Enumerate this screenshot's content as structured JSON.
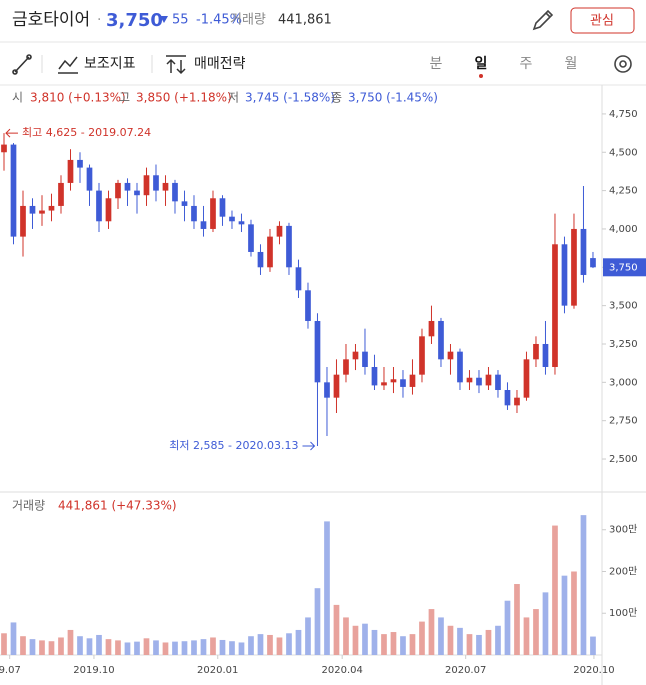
{
  "header": {
    "name": "금호타이어",
    "price": "3,750",
    "change": "55",
    "change_pct": "-1.45%",
    "volume_label": "거래량",
    "volume": "441,861",
    "button": "관심"
  },
  "toolbar": {
    "indicators": "보조지표",
    "strategy": "매매전략",
    "periods": [
      "분",
      "일",
      "주",
      "월"
    ]
  },
  "info": {
    "labels": [
      "시",
      "고",
      "저",
      "종"
    ],
    "values": [
      "3,810 (+0.13%)",
      "3,850 (+1.18%)",
      "3,745 (-1.58%)",
      "3,750 (-1.45%)"
    ]
  },
  "chart_data": {
    "type": "candlestick",
    "up_color": "#d0332a",
    "down_color": "#3e5bd6",
    "xlim": [
      -0.42,
      62.95
    ],
    "xticks": [
      {
        "value": 0.6,
        "label": "9.07"
      },
      {
        "value": 9.47,
        "label": "2019.10"
      },
      {
        "value": 22.5,
        "label": "2020.01"
      },
      {
        "value": 35.6,
        "label": "2020.04"
      },
      {
        "value": 48.6,
        "label": "2020.07"
      },
      {
        "value": 62.1,
        "label": "2020.10"
      }
    ],
    "ylim": [
      2285,
      4932
    ],
    "yticks": [
      {
        "value": 2500,
        "label": "2,500"
      },
      {
        "value": 2750,
        "label": "2,750"
      },
      {
        "value": 3000,
        "label": "3,000"
      },
      {
        "value": 3250,
        "label": "3,250"
      },
      {
        "value": 3500,
        "label": "3,500"
      },
      {
        "value": 3750,
        "label": "3,750"
      },
      {
        "value": 4000,
        "label": "4,000"
      },
      {
        "value": 4250,
        "label": "4,250"
      },
      {
        "value": 4500,
        "label": "4,500"
      },
      {
        "value": 4750,
        "label": "4,750"
      }
    ],
    "current_price": {
      "value": 3750,
      "label": "3,750"
    },
    "annotations": [
      {
        "text": "최고 4,625 - 2019.07.24",
        "index": 0,
        "value": 4625
      },
      {
        "text": "최저 2,585 - 2020.03.13",
        "index": 33,
        "value": 2585
      }
    ],
    "open": [
      4500,
      4550,
      3950,
      4150,
      4100,
      4120,
      4150,
      4300,
      4450,
      4400,
      4250,
      4050,
      4200,
      4300,
      4250,
      4220,
      4350,
      4250,
      4300,
      4180,
      4150,
      4050,
      4000,
      4200,
      4080,
      4050,
      4030,
      3850,
      3750,
      3950,
      4020,
      3750,
      3600,
      3400,
      3000,
      2900,
      3050,
      3150,
      3200,
      3100,
      2980,
      3000,
      3020,
      2970,
      3050,
      3300,
      3400,
      3150,
      3200,
      3000,
      3030,
      2980,
      3050,
      2950,
      2850,
      2900,
      3150,
      3250,
      3100,
      3900,
      3500,
      4000,
      3810
    ],
    "high": [
      4625,
      4560,
      4250,
      4200,
      4220,
      4230,
      4350,
      4520,
      4500,
      4420,
      4300,
      4250,
      4320,
      4330,
      4300,
      4400,
      4420,
      4350,
      4320,
      4250,
      4220,
      4150,
      4250,
      4220,
      4120,
      4100,
      4060,
      3900,
      4000,
      4050,
      4040,
      3800,
      3650,
      3450,
      3100,
      3150,
      3250,
      3250,
      3350,
      3180,
      3100,
      3100,
      3080,
      3150,
      3350,
      3500,
      3420,
      3250,
      3220,
      3080,
      3080,
      3100,
      3080,
      3000,
      2950,
      3200,
      3300,
      3400,
      4100,
      3950,
      4100,
      4280,
      3850
    ],
    "low": [
      4380,
      3900,
      3820,
      4000,
      4020,
      4050,
      4100,
      4250,
      4300,
      4150,
      3980,
      4000,
      4130,
      4150,
      4100,
      4150,
      4180,
      4150,
      4100,
      4050,
      4000,
      3950,
      3980,
      4020,
      4000,
      3980,
      3820,
      3700,
      3720,
      3900,
      3700,
      3550,
      3350,
      2585,
      2650,
      2800,
      3000,
      3080,
      3050,
      2950,
      2950,
      2930,
      2900,
      2920,
      3000,
      3250,
      3100,
      3050,
      2950,
      2950,
      2930,
      2950,
      2900,
      2820,
      2800,
      2880,
      3100,
      3050,
      3050,
      3450,
      3480,
      3650,
      3745
    ],
    "close": [
      4550,
      3950,
      4150,
      4100,
      4120,
      4150,
      4300,
      4450,
      4400,
      4250,
      4050,
      4200,
      4300,
      4250,
      4220,
      4350,
      4250,
      4300,
      4180,
      4150,
      4050,
      4000,
      4200,
      4080,
      4050,
      4030,
      3850,
      3750,
      3950,
      4020,
      3750,
      3600,
      3400,
      3000,
      2900,
      3050,
      3150,
      3200,
      3100,
      2980,
      3000,
      3020,
      2970,
      3050,
      3300,
      3400,
      3150,
      3200,
      3000,
      3030,
      2980,
      3050,
      2950,
      2850,
      2900,
      3150,
      3250,
      3100,
      3900,
      3500,
      4000,
      3700,
      3750
    ],
    "volume": {
      "label": "거래량",
      "summary": "441,861 (+47.33%)",
      "up_color": "#e8a29c",
      "down_color": "#9fb1ea",
      "ylim": [
        0,
        3880000
      ],
      "yticks": [
        {
          "value": 1000000,
          "label": "100만"
        },
        {
          "value": 2000000,
          "label": "200만"
        },
        {
          "value": 3000000,
          "label": "300만"
        }
      ],
      "values": [
        520000,
        780000,
        450000,
        380000,
        350000,
        330000,
        420000,
        600000,
        450000,
        400000,
        480000,
        380000,
        350000,
        300000,
        320000,
        400000,
        350000,
        300000,
        320000,
        330000,
        350000,
        380000,
        420000,
        360000,
        330000,
        300000,
        450000,
        500000,
        480000,
        420000,
        520000,
        600000,
        900000,
        1600000,
        3200000,
        1200000,
        900000,
        700000,
        750000,
        600000,
        500000,
        550000,
        450000,
        500000,
        800000,
        1100000,
        900000,
        700000,
        650000,
        500000,
        480000,
        600000,
        700000,
        1300000,
        1700000,
        900000,
        1100000,
        1500000,
        3100000,
        1900000,
        2000000,
        3350000,
        441861
      ]
    }
  }
}
